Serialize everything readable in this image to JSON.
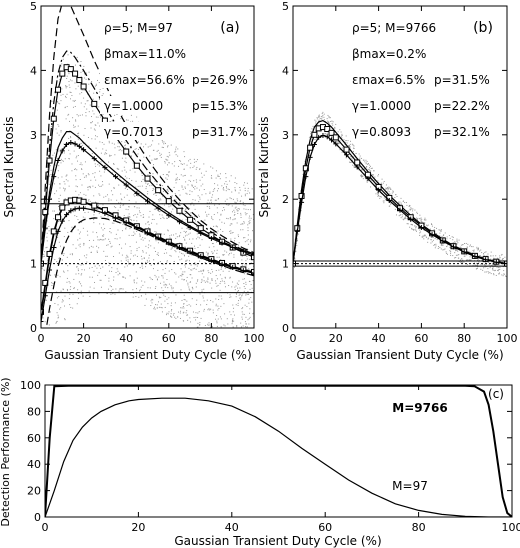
{
  "chart_data": [
    {
      "type": "scatter",
      "panel_label": "(a)",
      "xlabel": "Gaussian Transient Duty Cycle (%)",
      "ylabel": "Spectral Kurtosis",
      "xlim": [
        0,
        100
      ],
      "ylim": [
        0,
        5
      ],
      "x_ticks": [
        "0",
        "20",
        "40",
        "60",
        "80",
        "100"
      ],
      "y_ticks": [
        "0",
        "1",
        "2",
        "3",
        "4",
        "5"
      ],
      "annotations": {
        "line1": "ρ=5; M=97",
        "line2": "βmax=11.0%",
        "line3a": "εmax=56.6%",
        "line3b": "p=26.9%",
        "line4a": "γ=1.0000",
        "line4b": "p=15.3%",
        "line5a": "γ=0.7013",
        "line5b": "p=31.7%"
      },
      "hlines": {
        "upper_threshold": 1.93,
        "unity": 1.0,
        "lower_threshold": 0.55
      },
      "series": [
        {
          "style": "solid",
          "x": [
            0,
            2,
            4,
            6,
            8,
            10,
            12,
            14,
            16,
            18,
            20,
            25,
            30,
            35,
            40,
            45,
            50,
            55,
            60,
            65,
            70,
            75,
            80,
            85,
            90,
            95,
            100
          ],
          "y": [
            1.0,
            1.6,
            2.1,
            2.5,
            2.8,
            2.95,
            3.05,
            3.05,
            3.0,
            2.95,
            2.88,
            2.72,
            2.56,
            2.42,
            2.28,
            2.15,
            2.02,
            1.9,
            1.79,
            1.68,
            1.58,
            1.49,
            1.41,
            1.34,
            1.27,
            1.21,
            1.15
          ]
        },
        {
          "style": "dash",
          "x": [
            0,
            2,
            4,
            6,
            8,
            10,
            12,
            14,
            16,
            18,
            20,
            25,
            30,
            35,
            40,
            45,
            50,
            55,
            60,
            65,
            70,
            75,
            80,
            85,
            90,
            95,
            100
          ],
          "y": [
            1.0,
            2.2,
            3.3,
            4.2,
            4.8,
            5.05,
            5.1,
            5.0,
            4.85,
            4.7,
            4.55,
            4.15,
            3.8,
            3.45,
            3.15,
            2.88,
            2.62,
            2.39,
            2.18,
            1.99,
            1.82,
            1.67,
            1.54,
            1.43,
            1.33,
            1.24,
            1.17
          ]
        },
        {
          "style": "dashdot",
          "x": [
            0,
            2,
            4,
            6,
            8,
            10,
            12,
            14,
            16,
            18,
            20,
            25,
            30,
            35,
            40,
            45,
            50,
            55,
            60,
            65,
            70,
            75,
            80,
            85,
            90,
            95,
            100
          ],
          "y": [
            1.0,
            1.9,
            2.8,
            3.5,
            3.95,
            4.2,
            4.3,
            4.28,
            4.2,
            4.1,
            4.0,
            3.72,
            3.44,
            3.17,
            2.91,
            2.67,
            2.45,
            2.25,
            2.07,
            1.9,
            1.75,
            1.61,
            1.49,
            1.38,
            1.29,
            1.21,
            1.14
          ]
        },
        {
          "style": "squares",
          "x": [
            0,
            2,
            4,
            6,
            8,
            10,
            12,
            14,
            16,
            18,
            20,
            25,
            30,
            35,
            40,
            45,
            50,
            55,
            60,
            65,
            70,
            75,
            80,
            85,
            90,
            95,
            100
          ],
          "y": [
            1.0,
            1.8,
            2.6,
            3.25,
            3.7,
            3.95,
            4.05,
            4.02,
            3.95,
            3.85,
            3.75,
            3.48,
            3.22,
            2.97,
            2.74,
            2.52,
            2.32,
            2.14,
            1.97,
            1.82,
            1.68,
            1.55,
            1.44,
            1.34,
            1.25,
            1.17,
            1.1
          ]
        },
        {
          "style": "plus",
          "x": [
            0,
            2,
            4,
            6,
            8,
            10,
            12,
            14,
            16,
            18,
            20,
            25,
            30,
            35,
            40,
            45,
            50,
            55,
            60,
            65,
            70,
            75,
            80,
            85,
            90,
            95,
            100
          ],
          "y": [
            1.0,
            1.55,
            2.0,
            2.35,
            2.6,
            2.75,
            2.85,
            2.88,
            2.86,
            2.82,
            2.77,
            2.63,
            2.49,
            2.35,
            2.22,
            2.09,
            1.97,
            1.86,
            1.75,
            1.65,
            1.56,
            1.47,
            1.39,
            1.32,
            1.25,
            1.19,
            1.13
          ]
        },
        {
          "style": "solid",
          "x": [
            0,
            2,
            4,
            6,
            8,
            10,
            12,
            14,
            16,
            18,
            20,
            25,
            30,
            35,
            40,
            45,
            50,
            55,
            60,
            65,
            70,
            75,
            80,
            85,
            90,
            95,
            100
          ],
          "y": [
            0.2,
            0.65,
            1.1,
            1.45,
            1.7,
            1.85,
            1.93,
            1.97,
            1.98,
            1.97,
            1.95,
            1.89,
            1.82,
            1.74,
            1.66,
            1.57,
            1.49,
            1.41,
            1.33,
            1.26,
            1.19,
            1.12,
            1.06,
            1.0,
            0.95,
            0.9,
            0.86
          ]
        },
        {
          "style": "squares",
          "x": [
            0,
            2,
            4,
            6,
            8,
            10,
            12,
            14,
            16,
            18,
            20,
            25,
            30,
            35,
            40,
            45,
            50,
            55,
            60,
            65,
            70,
            75,
            80,
            85,
            90,
            95,
            100
          ],
          "y": [
            0.25,
            0.7,
            1.15,
            1.5,
            1.72,
            1.87,
            1.95,
            1.98,
            1.99,
            1.98,
            1.96,
            1.9,
            1.83,
            1.75,
            1.67,
            1.58,
            1.5,
            1.42,
            1.34,
            1.27,
            1.2,
            1.13,
            1.07,
            1.01,
            0.96,
            0.91,
            0.87
          ]
        },
        {
          "style": "plus",
          "x": [
            0,
            2,
            4,
            6,
            8,
            10,
            12,
            14,
            16,
            18,
            20,
            25,
            30,
            35,
            40,
            45,
            50,
            55,
            60,
            65,
            70,
            75,
            80,
            85,
            90,
            95,
            100
          ],
          "y": [
            0.1,
            0.5,
            0.9,
            1.25,
            1.5,
            1.66,
            1.76,
            1.82,
            1.85,
            1.86,
            1.86,
            1.83,
            1.78,
            1.71,
            1.64,
            1.56,
            1.48,
            1.4,
            1.32,
            1.25,
            1.18,
            1.11,
            1.05,
            0.99,
            0.94,
            0.89,
            0.85
          ]
        },
        {
          "style": "dash",
          "x": [
            0,
            2,
            4,
            6,
            8,
            10,
            12,
            14,
            16,
            18,
            20,
            25,
            30,
            35,
            40,
            45,
            50,
            55,
            60,
            65,
            70,
            75,
            80,
            85,
            90,
            95,
            100
          ],
          "y": [
            -0.5,
            -0.1,
            0.3,
            0.65,
            0.95,
            1.18,
            1.36,
            1.49,
            1.58,
            1.64,
            1.68,
            1.71,
            1.7,
            1.66,
            1.6,
            1.53,
            1.46,
            1.38,
            1.3,
            1.23,
            1.16,
            1.09,
            1.03,
            0.97,
            0.91,
            0.86,
            0.81
          ]
        }
      ]
    },
    {
      "type": "scatter",
      "panel_label": "(b)",
      "xlabel": "Gaussian Transient Duty Cycle (%)",
      "ylabel": "Spectral Kurtosis",
      "xlim": [
        0,
        100
      ],
      "ylim": [
        0,
        5
      ],
      "x_ticks": [
        "0",
        "20",
        "40",
        "60",
        "80",
        "100"
      ],
      "y_ticks": [
        "0",
        "1",
        "2",
        "3",
        "4",
        "5"
      ],
      "annotations": {
        "line1": "ρ=5; M=9766",
        "line2": "βmax=0.2%",
        "line3a": "εmax=6.5%",
        "line3b": "p=31.5%",
        "line4a": "γ=1.0000",
        "line4b": "p=22.2%",
        "line5a": "γ=0.8093",
        "line5b": "p=32.1%"
      },
      "hlines": {
        "upper_threshold": 1.04,
        "unity": 1.0,
        "lower_threshold": 0.96
      },
      "series": [
        {
          "style": "solid",
          "x": [
            0,
            2,
            4,
            6,
            8,
            10,
            12,
            14,
            16,
            18,
            20,
            25,
            30,
            35,
            40,
            45,
            50,
            55,
            60,
            65,
            70,
            75,
            80,
            85,
            90,
            95,
            100
          ],
          "y": [
            1.0,
            1.6,
            2.15,
            2.6,
            2.92,
            3.12,
            3.2,
            3.22,
            3.18,
            3.12,
            3.04,
            2.84,
            2.63,
            2.43,
            2.24,
            2.06,
            1.9,
            1.75,
            1.61,
            1.49,
            1.38,
            1.28,
            1.2,
            1.13,
            1.07,
            1.03,
            1.0
          ]
        },
        {
          "style": "squares",
          "x": [
            0,
            2,
            4,
            6,
            8,
            10,
            12,
            14,
            16,
            18,
            20,
            25,
            30,
            35,
            40,
            45,
            50,
            55,
            60,
            65,
            70,
            75,
            80,
            85,
            90,
            95,
            100
          ],
          "y": [
            1.0,
            1.55,
            2.05,
            2.48,
            2.8,
            3.0,
            3.1,
            3.12,
            3.09,
            3.03,
            2.96,
            2.77,
            2.57,
            2.38,
            2.19,
            2.02,
            1.86,
            1.72,
            1.59,
            1.47,
            1.36,
            1.27,
            1.19,
            1.12,
            1.07,
            1.03,
            1.0
          ]
        },
        {
          "style": "plus",
          "x": [
            0,
            2,
            4,
            6,
            8,
            10,
            12,
            14,
            16,
            18,
            20,
            25,
            30,
            35,
            40,
            45,
            50,
            55,
            60,
            65,
            70,
            75,
            80,
            85,
            90,
            95,
            100
          ],
          "y": [
            1.0,
            1.5,
            1.95,
            2.35,
            2.65,
            2.85,
            2.96,
            2.99,
            2.97,
            2.92,
            2.86,
            2.69,
            2.5,
            2.32,
            2.14,
            1.98,
            1.83,
            1.69,
            1.56,
            1.45,
            1.35,
            1.26,
            1.18,
            1.11,
            1.06,
            1.02,
            1.0
          ]
        }
      ]
    },
    {
      "type": "line",
      "panel_label": "(c)",
      "xlabel": "Gaussian Transient Duty Cycle (%)",
      "ylabel": "Detection Performance (%)",
      "xlim": [
        0,
        100
      ],
      "ylim": [
        0,
        100
      ],
      "x_ticks": [
        "0",
        "20",
        "40",
        "60",
        "80",
        "100"
      ],
      "y_ticks": [
        "0",
        "20",
        "40",
        "60",
        "80",
        "100"
      ],
      "series": [
        {
          "name": "M=9766",
          "x": [
            0,
            1,
            2,
            5,
            10,
            20,
            30,
            40,
            50,
            60,
            70,
            80,
            90,
            92,
            94,
            95,
            96,
            97,
            98,
            99,
            100
          ],
          "y": [
            0,
            60,
            99,
            99.5,
            99.5,
            99.5,
            99.5,
            99.5,
            99.5,
            99.5,
            99.5,
            99.5,
            99.5,
            99,
            95,
            85,
            65,
            40,
            15,
            3,
            0
          ]
        },
        {
          "name": "M=97",
          "x": [
            0,
            2,
            4,
            6,
            8,
            10,
            12,
            15,
            18,
            20,
            25,
            30,
            35,
            40,
            45,
            50,
            55,
            60,
            65,
            70,
            75,
            80,
            85,
            90,
            95,
            100
          ],
          "y": [
            0,
            20,
            42,
            58,
            68,
            75,
            80,
            85,
            88,
            89,
            90,
            90,
            88,
            84,
            76,
            65,
            52,
            40,
            28,
            18,
            10,
            5,
            2,
            0.5,
            0,
            0
          ]
        }
      ]
    }
  ]
}
